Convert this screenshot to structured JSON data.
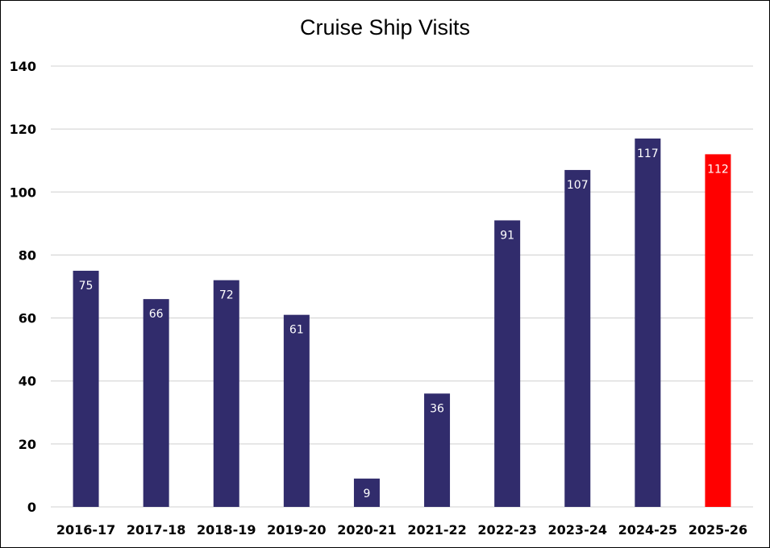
{
  "chart_data": {
    "type": "bar",
    "title": "Cruise Ship Visits",
    "xlabel": "",
    "ylabel": "",
    "ylim": [
      0,
      140
    ],
    "yticks": [
      0,
      20,
      40,
      60,
      80,
      100,
      120,
      140
    ],
    "grid": true,
    "legend": "none",
    "categories": [
      "2016-17",
      "2017-18",
      "2018-19",
      "2019-20",
      "2020-21",
      "2021-22",
      "2022-23",
      "2023-24",
      "2024-25",
      "2025-26"
    ],
    "values": [
      75,
      66,
      72,
      61,
      9,
      36,
      91,
      107,
      117,
      112
    ],
    "colors": {
      "bar": "#312c6c",
      "highlight": "#ff0000",
      "label": "#ffffff"
    },
    "highlight_index": 9
  }
}
